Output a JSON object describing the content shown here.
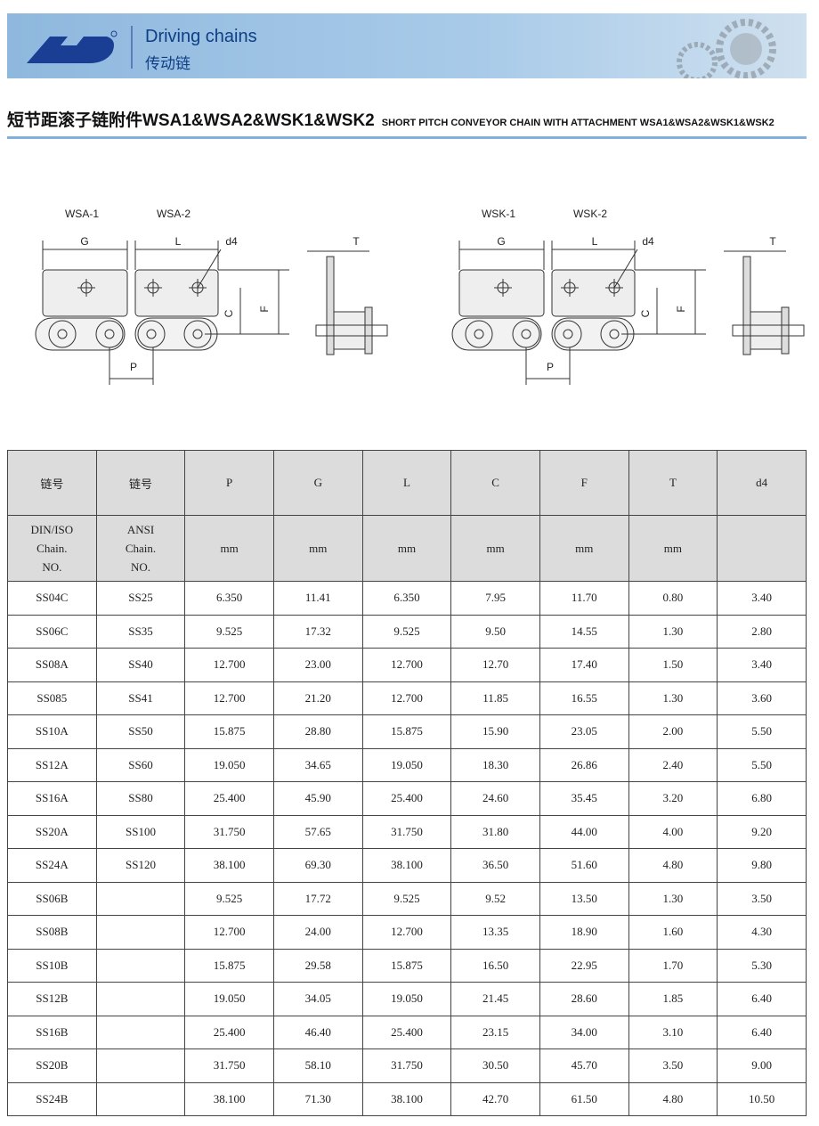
{
  "header": {
    "brand": "Driving chains",
    "brand_cn": "传动链"
  },
  "title": {
    "cn": "短节距滚子链附件WSA1&WSA2&WSK1&WSK2",
    "en": "SHORT PITCH CONVEYOR CHAIN WITH ATTACHMENT WSA1&WSA2&WSK1&WSK2"
  },
  "diagrams": [
    {
      "labels": [
        "WSA-1",
        "WSA-2",
        "G",
        "L",
        "d4",
        "C",
        "F",
        "P",
        "T"
      ]
    },
    {
      "labels": [
        "WSK-1",
        "WSK-2",
        "G",
        "L",
        "d4",
        "C",
        "F",
        "P",
        "T"
      ]
    }
  ],
  "table": {
    "columns": [
      {
        "top": "链号",
        "bottom": [
          "DIN/ISO",
          "Chain.",
          "NO."
        ]
      },
      {
        "top": "链号",
        "bottom": [
          "ANSI",
          "Chain.",
          "NO."
        ]
      },
      {
        "top": "P",
        "unit": "mm"
      },
      {
        "top": "G",
        "unit": "mm"
      },
      {
        "top": "L",
        "unit": "mm"
      },
      {
        "top": "C",
        "unit": "mm"
      },
      {
        "top": "F",
        "unit": "mm"
      },
      {
        "top": "T",
        "unit": "mm"
      },
      {
        "top": "d4"
      }
    ],
    "rows": [
      [
        "SS04C",
        "SS25",
        "6.350",
        "11.41",
        "6.350",
        "7.95",
        "11.70",
        "0.80",
        "3.40"
      ],
      [
        "SS06C",
        "SS35",
        "9.525",
        "17.32",
        "9.525",
        "9.50",
        "14.55",
        "1.30",
        "2.80"
      ],
      [
        "SS08A",
        "SS40",
        "12.700",
        "23.00",
        "12.700",
        "12.70",
        "17.40",
        "1.50",
        "3.40"
      ],
      [
        "SS085",
        "SS41",
        "12.700",
        "21.20",
        "12.700",
        "11.85",
        "16.55",
        "1.30",
        "3.60"
      ],
      [
        "SS10A",
        "SS50",
        "15.875",
        "28.80",
        "15.875",
        "15.90",
        "23.05",
        "2.00",
        "5.50"
      ],
      [
        "SS12A",
        "SS60",
        "19.050",
        "34.65",
        "19.050",
        "18.30",
        "26.86",
        "2.40",
        "5.50"
      ],
      [
        "SS16A",
        "SS80",
        "25.400",
        "45.90",
        "25.400",
        "24.60",
        "35.45",
        "3.20",
        "6.80"
      ],
      [
        "SS20A",
        "SS100",
        "31.750",
        "57.65",
        "31.750",
        "31.80",
        "44.00",
        "4.00",
        "9.20"
      ],
      [
        "SS24A",
        "SS120",
        "38.100",
        "69.30",
        "38.100",
        "36.50",
        "51.60",
        "4.80",
        "9.80"
      ],
      [
        "SS06B",
        null,
        "9.525",
        "17.72",
        "9.525",
        "9.52",
        "13.50",
        "1.30",
        "3.50"
      ],
      [
        "SS08B",
        null,
        "12.700",
        "24.00",
        "12.700",
        "13.35",
        "18.90",
        "1.60",
        "4.30"
      ],
      [
        "SS10B",
        null,
        "15.875",
        "29.58",
        "15.875",
        "16.50",
        "22.95",
        "1.70",
        "5.30"
      ],
      [
        "SS12B",
        null,
        "19.050",
        "34.05",
        "19.050",
        "21.45",
        "28.60",
        "1.85",
        "6.40"
      ],
      [
        "SS16B",
        null,
        "25.400",
        "46.40",
        "25.400",
        "23.15",
        "34.00",
        "3.10",
        "6.40"
      ],
      [
        "SS20B",
        null,
        "31.750",
        "58.10",
        "31.750",
        "30.50",
        "45.70",
        "3.50",
        "9.00"
      ],
      [
        "SS24B",
        null,
        "38.100",
        "71.30",
        "38.100",
        "42.70",
        "61.50",
        "4.80",
        "10.50"
      ]
    ]
  }
}
